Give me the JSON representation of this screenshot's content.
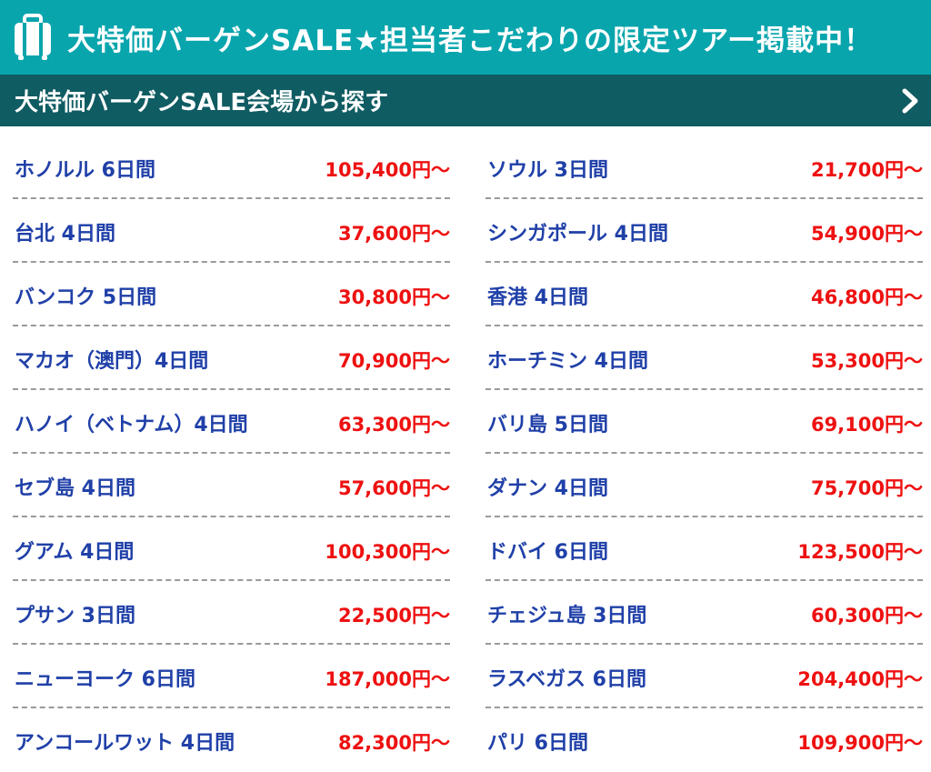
{
  "banner": {
    "title": "大特価バーゲンSALE★担当者こだわりの限定ツアー掲載中！",
    "icon": "suitcase-icon"
  },
  "subheader": {
    "title": "大特価バーゲンSALE会場から探す",
    "icon": "chevron-right-icon"
  },
  "colors": {
    "banner_bg": "#08a5ad",
    "subheader_bg": "#0f5c62",
    "destination_text": "#2040a8",
    "price_text": "#ee1111"
  },
  "tours_left": [
    {
      "destination": "ホノルル 6日間",
      "price": "105,400円～"
    },
    {
      "destination": "台北 4日間",
      "price": "37,600円～"
    },
    {
      "destination": "バンコク 5日間",
      "price": "30,800円～"
    },
    {
      "destination": "マカオ（澳門）4日間",
      "price": "70,900円～"
    },
    {
      "destination": "ハノイ（ベトナム）4日間",
      "price": "63,300円～"
    },
    {
      "destination": "セブ島 4日間",
      "price": "57,600円～"
    },
    {
      "destination": "グアム 4日間",
      "price": "100,300円～"
    },
    {
      "destination": "プサン 3日間",
      "price": "22,500円～"
    },
    {
      "destination": "ニューヨーク 6日間",
      "price": "187,000円～"
    },
    {
      "destination": "アンコールワット 4日間",
      "price": "82,300円～"
    }
  ],
  "tours_right": [
    {
      "destination": "ソウル 3日間",
      "price": "21,700円～"
    },
    {
      "destination": "シンガポール 4日間",
      "price": "54,900円～"
    },
    {
      "destination": "香港 4日間",
      "price": "46,800円～"
    },
    {
      "destination": "ホーチミン 4日間",
      "price": "53,300円～"
    },
    {
      "destination": "バリ島 5日間",
      "price": "69,100円～"
    },
    {
      "destination": "ダナン 4日間",
      "price": "75,700円～"
    },
    {
      "destination": "ドバイ 6日間",
      "price": "123,500円～"
    },
    {
      "destination": "チェジュ島 3日間",
      "price": "60,300円～"
    },
    {
      "destination": "ラスベガス 6日間",
      "price": "204,400円～"
    },
    {
      "destination": "パリ 6日間",
      "price": "109,900円～"
    }
  ]
}
